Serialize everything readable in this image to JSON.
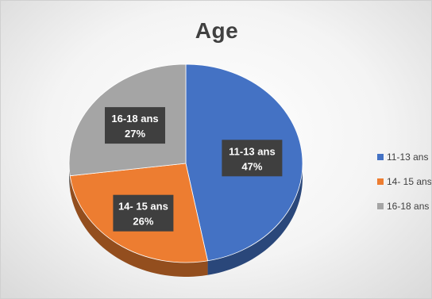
{
  "chart_data": {
    "type": "pie",
    "title": "Age",
    "categories": [
      "11-13 ans",
      "14- 15 ans",
      "16-18 ans"
    ],
    "values": [
      47,
      26,
      27
    ],
    "unit": "%",
    "data_labels": [
      {
        "name": "11-13 ans",
        "value": "47%"
      },
      {
        "name": "14- 15 ans",
        "value": "26%"
      },
      {
        "name": "16-18 ans",
        "value": "27%"
      }
    ],
    "colors": [
      "#4472C4",
      "#ED7D31",
      "#A5A5A5"
    ],
    "legend_position": "right",
    "style": "3d"
  }
}
